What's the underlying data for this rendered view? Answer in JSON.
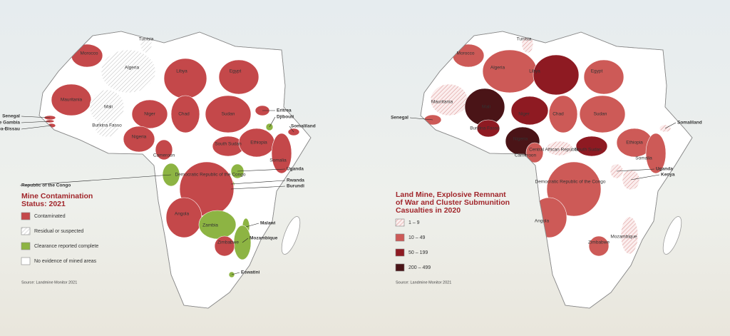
{
  "maps": [
    {
      "title_lines": [
        "Mine Contamination",
        "Status: 2021"
      ],
      "legend": [
        {
          "label": "Contaminated",
          "color": "#c4484a"
        },
        {
          "label": "Residual or suspected",
          "color": "#ffffff",
          "fill_style": "hatched"
        },
        {
          "label": "Clearance reported complete",
          "color": "#8db443"
        },
        {
          "label": "No evidence of mined areas",
          "color": "#ffffff"
        }
      ],
      "source": "Source: Landmine Monitor 2021",
      "regions": [
        {
          "name": "Morocco",
          "category": "Contaminated"
        },
        {
          "name": "Algeria",
          "category": "Residual or suspected"
        },
        {
          "name": "Tunisia",
          "category": "Residual or suspected"
        },
        {
          "name": "Libya",
          "category": "Contaminated"
        },
        {
          "name": "Egypt",
          "category": "Contaminated"
        },
        {
          "name": "Mauritania",
          "category": "Contaminated"
        },
        {
          "name": "Mali",
          "category": "Residual or suspected"
        },
        {
          "name": "Niger",
          "category": "Contaminated"
        },
        {
          "name": "Chad",
          "category": "Contaminated"
        },
        {
          "name": "Sudan",
          "category": "Contaminated"
        },
        {
          "name": "Eritrea",
          "category": "Contaminated"
        },
        {
          "name": "Djibouti",
          "category": "Clearance reported complete"
        },
        {
          "name": "Somaliland",
          "category": "Contaminated"
        },
        {
          "name": "Senegal",
          "category": "Contaminated"
        },
        {
          "name": "The Gambia",
          "category": "Contaminated"
        },
        {
          "name": "Guinea-Bissau",
          "category": "Contaminated"
        },
        {
          "name": "Burkina Fasso",
          "category": "Residual or suspected"
        },
        {
          "name": "Nigeria",
          "category": "Contaminated"
        },
        {
          "name": "Cameroon",
          "category": "Contaminated"
        },
        {
          "name": "South Sudan",
          "category": "Contaminated"
        },
        {
          "name": "Ethiopia",
          "category": "Contaminated"
        },
        {
          "name": "Somalia",
          "category": "Contaminated"
        },
        {
          "name": "Uganda",
          "category": "Clearance reported complete"
        },
        {
          "name": "Rwanda",
          "category": "Clearance reported complete"
        },
        {
          "name": "Burundi",
          "category": "Clearance reported complete"
        },
        {
          "name": "Democratic Republic of the Congo",
          "category": "Contaminated"
        },
        {
          "name": "Republic of the Congo",
          "category": "Clearance reported complete"
        },
        {
          "name": "Angola",
          "category": "Contaminated"
        },
        {
          "name": "Zambia",
          "category": "Clearance reported complete"
        },
        {
          "name": "Malawi",
          "category": "Clearance reported complete"
        },
        {
          "name": "Mozambique",
          "category": "Clearance reported complete"
        },
        {
          "name": "Zimbabwe",
          "category": "Contaminated"
        },
        {
          "name": "Eswatini",
          "category": "Clearance reported complete"
        }
      ]
    },
    {
      "title_lines": [
        "Land Mine, Explosive Remnant",
        "of War and Cluster Submunition",
        "Casualties in 2020"
      ],
      "legend": [
        {
          "label": "1 – 9",
          "color": "#f4dcdc",
          "fill_style": "hatched"
        },
        {
          "label": "10 – 49",
          "color": "#cd5a57"
        },
        {
          "label": "50 – 199",
          "color": "#8e1a22"
        },
        {
          "label": "200 – 499",
          "color": "#4a1417"
        }
      ],
      "source": "Source: Landmine Monitor 2021",
      "regions": [
        {
          "name": "Tunisia",
          "category": "1 – 9"
        },
        {
          "name": "Morocco",
          "category": "10 – 49"
        },
        {
          "name": "Algeria",
          "category": "10 – 49"
        },
        {
          "name": "Libya",
          "category": "50 – 199"
        },
        {
          "name": "Egypt",
          "category": "10 – 49"
        },
        {
          "name": "Mauritania",
          "category": "1 – 9"
        },
        {
          "name": "Mali",
          "category": "200 – 499"
        },
        {
          "name": "Niger",
          "category": "50 – 199"
        },
        {
          "name": "Chad",
          "category": "10 – 49"
        },
        {
          "name": "Sudan",
          "category": "10 – 49"
        },
        {
          "name": "Senegal",
          "category": "10 – 49"
        },
        {
          "name": "Burkina Fasso",
          "category": "50 – 199"
        },
        {
          "name": "Nigeria",
          "category": "200 – 499"
        },
        {
          "name": "Cameroon",
          "category": "10 – 49"
        },
        {
          "name": "Central African Republic",
          "category": "1 – 9"
        },
        {
          "name": "South Sudan",
          "category": "50 – 199"
        },
        {
          "name": "Ethiopia",
          "category": "10 – 49"
        },
        {
          "name": "Somalia",
          "category": "10 – 49"
        },
        {
          "name": "Somaliland",
          "category": "1 – 9"
        },
        {
          "name": "Uganda",
          "category": "1 – 9"
        },
        {
          "name": "Kenya",
          "category": "1 – 9"
        },
        {
          "name": "Democratic Republic of the Congo",
          "category": "10 – 49"
        },
        {
          "name": "Angola",
          "category": "10 – 49"
        },
        {
          "name": "Zimbabwe",
          "category": "10 – 49"
        },
        {
          "name": "Mozambique",
          "category": "1 – 9"
        }
      ]
    }
  ]
}
